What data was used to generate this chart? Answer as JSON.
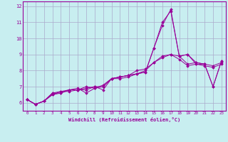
{
  "xlabel": "Windchill (Refroidissement éolien,°C)",
  "ylabel": "",
  "bg_color": "#c8eef0",
  "grid_color": "#aaaacc",
  "line_color": "#990099",
  "xlim": [
    -0.5,
    23.5
  ],
  "ylim": [
    5.5,
    12.3
  ],
  "xticks": [
    0,
    1,
    2,
    3,
    4,
    5,
    6,
    7,
    8,
    9,
    10,
    11,
    12,
    13,
    14,
    15,
    16,
    17,
    18,
    19,
    20,
    21,
    22,
    23
  ],
  "yticks": [
    6,
    7,
    8,
    9,
    10,
    11,
    12
  ],
  "series": [
    [
      6.2,
      5.9,
      6.1,
      6.6,
      6.6,
      6.8,
      6.9,
      6.6,
      6.9,
      7.0,
      7.5,
      7.6,
      7.7,
      7.8,
      7.9,
      9.4,
      11.0,
      11.7,
      8.9,
      9.0,
      8.5,
      8.4,
      7.0,
      8.6
    ],
    [
      6.2,
      5.9,
      6.1,
      6.5,
      6.7,
      6.8,
      6.8,
      6.8,
      7.0,
      6.8,
      7.5,
      7.6,
      7.7,
      7.8,
      7.9,
      9.4,
      10.8,
      11.8,
      8.9,
      9.0,
      8.4,
      8.4,
      7.0,
      8.6
    ],
    [
      6.2,
      5.9,
      6.1,
      6.6,
      6.7,
      6.7,
      6.8,
      7.0,
      6.9,
      7.1,
      7.5,
      7.6,
      7.7,
      8.0,
      8.1,
      8.5,
      8.9,
      9.0,
      8.9,
      8.4,
      8.5,
      8.4,
      8.3,
      8.5
    ],
    [
      6.2,
      5.9,
      6.1,
      6.5,
      6.6,
      6.8,
      6.8,
      6.9,
      7.0,
      7.0,
      7.5,
      7.5,
      7.6,
      7.8,
      8.0,
      8.5,
      8.8,
      9.0,
      8.7,
      8.3,
      8.4,
      8.3,
      8.2,
      8.4
    ]
  ]
}
